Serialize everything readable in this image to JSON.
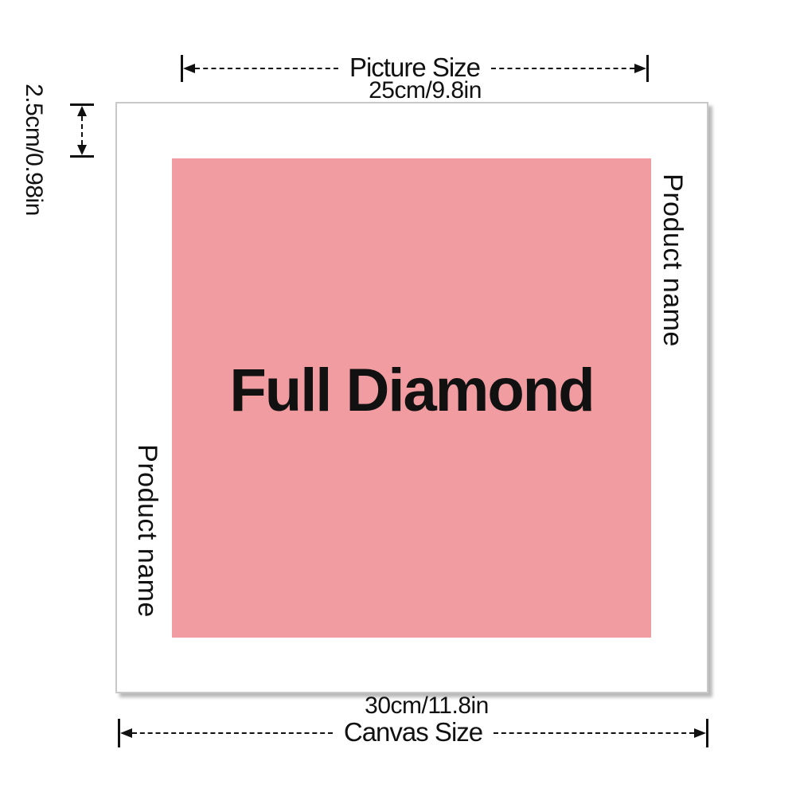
{
  "picture": {
    "label": "Full Diamond",
    "fill_color": "#F09CA0"
  },
  "dimensions": {
    "top": {
      "title": "Picture Size",
      "value": "25cm/9.8in"
    },
    "bottom": {
      "title": "Canvas Size",
      "value": "30cm/11.8in"
    },
    "margin": {
      "value": "2.5cm/0.98in"
    }
  },
  "side_labels": {
    "right": "Product name",
    "left": "Product name"
  },
  "colors": {
    "line": "#111111",
    "canvas_border": "#c9c9c9",
    "canvas_background": "#ffffff",
    "picture_fill": "#F09CA0"
  }
}
